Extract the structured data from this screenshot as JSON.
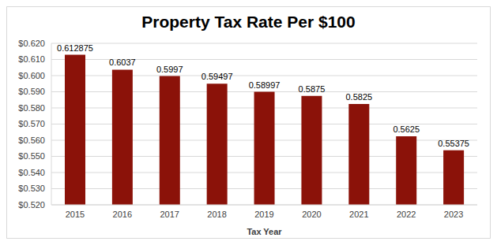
{
  "chart_data": {
    "type": "bar",
    "title": "Property Tax Rate Per $100",
    "x_label": "Tax Year",
    "categories": [
      "2015",
      "2016",
      "2017",
      "2018",
      "2019",
      "2020",
      "2021",
      "2022",
      "2023"
    ],
    "values": [
      0.612875,
      0.6037,
      0.5997,
      0.59497,
      0.58997,
      0.5875,
      0.5825,
      0.5625,
      0.55375
    ],
    "color": "#8b1209",
    "ylim": [
      0.52,
      0.62
    ],
    "yticks": [
      {
        "value": 0.52,
        "label": "$0.520"
      },
      {
        "value": 0.53,
        "label": "$0.530"
      },
      {
        "value": 0.54,
        "label": "$0.540"
      },
      {
        "value": 0.55,
        "label": "$0.550"
      },
      {
        "value": 0.56,
        "label": "$0.560"
      },
      {
        "value": 0.57,
        "label": "$0.570"
      },
      {
        "value": 0.58,
        "label": "$0.580"
      },
      {
        "value": 0.59,
        "label": "$0.590"
      },
      {
        "value": 0.6,
        "label": "$0.600"
      },
      {
        "value": 0.61,
        "label": "$0.610"
      },
      {
        "value": 0.62,
        "label": "$0.620"
      }
    ],
    "grid": true,
    "data_labels": true
  }
}
